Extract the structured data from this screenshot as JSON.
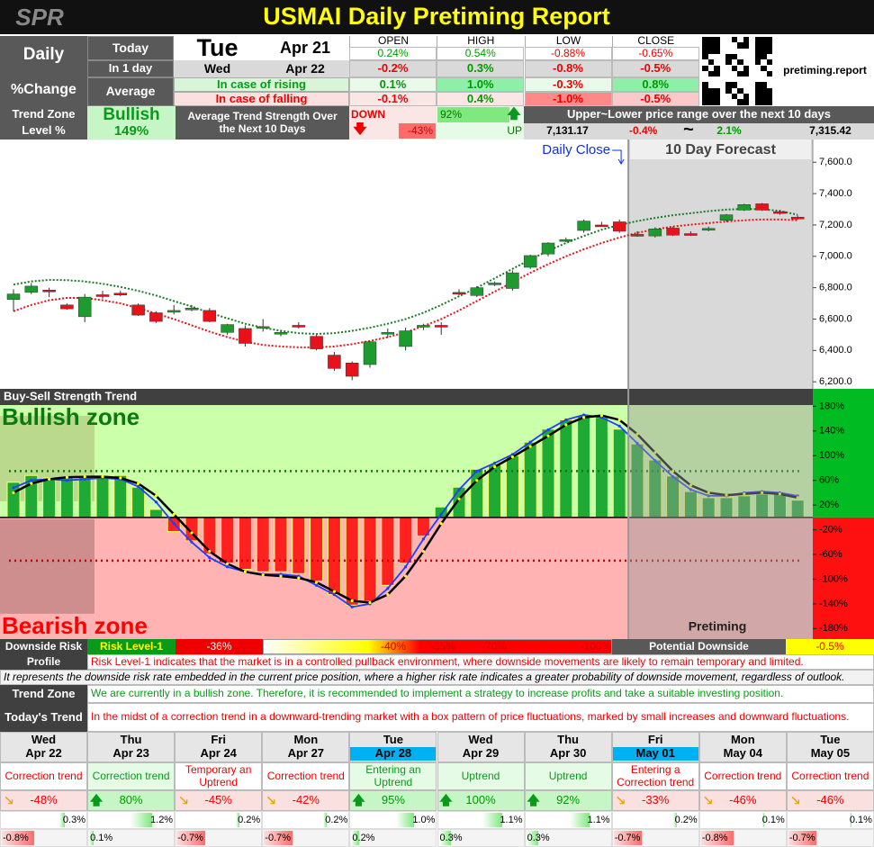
{
  "header": {
    "logo": "SPR",
    "title": "USMAI Daily Pretiming Report",
    "site": "pretiming.report"
  },
  "summary": {
    "label_daily": "Daily",
    "label_change": "%Change",
    "label_today": "Today",
    "label_in1day": "In 1 day",
    "label_average": "Average",
    "today_day": "Tue",
    "today_date": "Apr 21",
    "next_day": "Wed",
    "next_date": "Apr 22",
    "label_rising": "In case of rising",
    "label_falling": "In case of falling",
    "columns": [
      "OPEN",
      "HIGH",
      "LOW",
      "CLOSE"
    ],
    "rows": [
      [
        "0.24%",
        "0.54%",
        "-0.88%",
        "-0.65%"
      ],
      [
        "-0.2%",
        "0.3%",
        "-0.8%",
        "-0.5%"
      ],
      [
        "0.1%",
        "1.0%",
        "-0.3%",
        "0.8%"
      ],
      [
        "-0.1%",
        "0.4%",
        "-1.0%",
        "-0.5%"
      ]
    ]
  },
  "trend": {
    "label": "Trend Zone",
    "label2": "Level %",
    "zone": "Bullish",
    "level": "149%",
    "strength_label": "Average Trend Strength Over the Next 10 Days",
    "down_label": "DOWN",
    "down_value": "-43%",
    "up_value": "92%",
    "up_label": "UP",
    "range_label": "Upper~Lower price range over the next 10 days",
    "range_low": "7,131.17",
    "range_low_pct": "-0.4%",
    "range_sep": "~",
    "range_high_pct": "2.1%",
    "range_high": "7,315.42"
  },
  "chart_data": [
    {
      "type": "candlestick",
      "daily_close_label": "Daily Close",
      "forecast_label": "10 Day Forecast",
      "forecast_start": 35,
      "ylim": [
        6155,
        7745
      ],
      "yticks": [
        {
          "value": 6200,
          "label": "6,200.0"
        },
        {
          "value": 6400,
          "label": "6,400.0"
        },
        {
          "value": 6600,
          "label": "6,600.0"
        },
        {
          "value": 6800,
          "label": "6,800.0"
        },
        {
          "value": 7000,
          "label": "7,000.0"
        },
        {
          "value": 7200,
          "label": "7,200.0"
        },
        {
          "value": 7400,
          "label": "7,400.0"
        },
        {
          "value": 7600,
          "label": "7,600.0"
        }
      ],
      "up_color": "#1e9b2e",
      "down_color": "#e8121b",
      "ohlc": [
        [
          6725,
          6790,
          6650,
          6760
        ],
        [
          6770,
          6830,
          6760,
          6810
        ],
        [
          6785,
          6800,
          6740,
          6780
        ],
        [
          6690,
          6700,
          6660,
          6665
        ],
        [
          6615,
          6760,
          6580,
          6740
        ],
        [
          6755,
          6780,
          6730,
          6745
        ],
        [
          6765,
          6780,
          6745,
          6760
        ],
        [
          6690,
          6700,
          6620,
          6625
        ],
        [
          6640,
          6650,
          6575,
          6585
        ],
        [
          6650,
          6690,
          6630,
          6655
        ],
        [
          6665,
          6690,
          6650,
          6670
        ],
        [
          6655,
          6670,
          6580,
          6585
        ],
        [
          6515,
          6570,
          6500,
          6565
        ],
        [
          6540,
          6560,
          6425,
          6445
        ],
        [
          6548,
          6600,
          6520,
          6552
        ],
        [
          6510,
          6530,
          6490,
          6515
        ],
        [
          6560,
          6580,
          6540,
          6555
        ],
        [
          6490,
          6500,
          6400,
          6410
        ],
        [
          6370,
          6390,
          6270,
          6285
        ],
        [
          6320,
          6330,
          6210,
          6235
        ],
        [
          6310,
          6460,
          6290,
          6455
        ],
        [
          6505,
          6540,
          6480,
          6515
        ],
        [
          6425,
          6545,
          6400,
          6525
        ],
        [
          6550,
          6570,
          6530,
          6560
        ],
        [
          6560,
          6580,
          6500,
          6550
        ],
        [
          6770,
          6790,
          6750,
          6765
        ],
        [
          6750,
          6810,
          6740,
          6800
        ],
        [
          6820,
          6840,
          6810,
          6830
        ],
        [
          6795,
          6910,
          6780,
          6895
        ],
        [
          6930,
          7010,
          6920,
          7005
        ],
        [
          7015,
          7090,
          7000,
          7085
        ],
        [
          7100,
          7120,
          7090,
          7107
        ],
        [
          7165,
          7235,
          7150,
          7225
        ],
        [
          7200,
          7220,
          7190,
          7198
        ],
        [
          7220,
          7235,
          7150,
          7160
        ],
        [
          7140,
          7160,
          7125,
          7130
        ],
        [
          7130,
          7185,
          7120,
          7175
        ],
        [
          7180,
          7190,
          7130,
          7135
        ],
        [
          7145,
          7160,
          7130,
          7140
        ],
        [
          7170,
          7190,
          7160,
          7178
        ],
        [
          7230,
          7270,
          7220,
          7265
        ],
        [
          7295,
          7335,
          7290,
          7330
        ],
        [
          7335,
          7340,
          7290,
          7295
        ],
        [
          7285,
          7295,
          7265,
          7275
        ],
        [
          7250,
          7260,
          7235,
          7240
        ]
      ],
      "series": [
        {
          "color": "#1a7a2a",
          "values": [
            6820,
            6840,
            6850,
            6848,
            6840,
            6825,
            6805,
            6780,
            6750,
            6715,
            6680,
            6640,
            6605,
            6570,
            6545,
            6525,
            6510,
            6505,
            6510,
            6525,
            6545,
            6570,
            6600,
            6640,
            6690,
            6745,
            6800,
            6860,
            6920,
            6980,
            7035,
            7085,
            7130,
            7170,
            7200,
            7225,
            7245,
            7262,
            7275,
            7288,
            7298,
            7303,
            7300,
            7290,
            7265
          ]
        },
        {
          "color": "#e8121b",
          "values": [
            6650,
            6690,
            6720,
            6735,
            6735,
            6720,
            6700,
            6670,
            6635,
            6600,
            6560,
            6520,
            6485,
            6455,
            6435,
            6425,
            6420,
            6420,
            6425,
            6440,
            6460,
            6485,
            6515,
            6555,
            6600,
            6655,
            6715,
            6775,
            6835,
            6895,
            6950,
            7000,
            7045,
            7085,
            7120,
            7150,
            7172,
            7190,
            7202,
            7212,
            7222,
            7230,
            7235,
            7235,
            7230
          ]
        }
      ]
    },
    {
      "type": "bar",
      "title": "Buy-Sell Strength Trend",
      "bull_label": "Bullish zone",
      "bear_label": "Bearish zone",
      "brand": "Pretiming",
      "forecast_start": 35,
      "ylim": [
        -197,
        182
      ],
      "yticks": [
        {
          "value": 180,
          "label": "180%"
        },
        {
          "value": 140,
          "label": "140%"
        },
        {
          "value": 100,
          "label": "100%"
        },
        {
          "value": 60,
          "label": "60%"
        },
        {
          "value": 20,
          "label": "20%"
        },
        {
          "value": -20,
          "label": "-20%"
        },
        {
          "value": -60,
          "label": "-60%"
        },
        {
          "value": -100,
          "label": "-100%"
        },
        {
          "value": -140,
          "label": "-140%"
        },
        {
          "value": -180,
          "label": "-180%"
        }
      ],
      "upper_threshold": 75,
      "lower_threshold": -70,
      "up_color": "#1faa35",
      "down_color": "#ff2020",
      "values": [
        57,
        68,
        64,
        64,
        68,
        68,
        68,
        49,
        13,
        -23,
        -38,
        -59,
        -74,
        -84,
        -88,
        -88,
        -91,
        -103,
        -125,
        -142,
        -136,
        -110,
        -74,
        -30,
        17,
        49,
        78,
        86,
        100,
        122,
        143,
        158,
        165,
        162,
        143,
        119,
        93,
        67,
        42,
        32,
        32,
        35,
        38,
        38,
        28
      ],
      "series": [
        {
          "color": "#1f3fff",
          "values": [
            48,
            60,
            62,
            60,
            62,
            64,
            62,
            50,
            25,
            -10,
            -40,
            -65,
            -80,
            -88,
            -92,
            -92,
            -95,
            -110,
            -125,
            -145,
            -140,
            -115,
            -80,
            -35,
            5,
            45,
            75,
            88,
            102,
            122,
            142,
            158,
            166,
            162,
            148,
            120,
            92,
            66,
            45,
            35,
            35,
            40,
            42,
            40,
            35
          ]
        },
        {
          "color": "#000000",
          "values": [
            40,
            55,
            62,
            65,
            66,
            66,
            64,
            55,
            35,
            5,
            -25,
            -55,
            -75,
            -88,
            -93,
            -95,
            -98,
            -105,
            -120,
            -135,
            -138,
            -125,
            -95,
            -55,
            -10,
            30,
            60,
            82,
            98,
            115,
            132,
            150,
            162,
            165,
            158,
            135,
            105,
            75,
            52,
            40,
            36,
            38,
            40,
            38,
            32
          ]
        }
      ]
    }
  ],
  "risk": {
    "label": "Downside Risk",
    "label2": "Profile",
    "level": "Risk Level-1",
    "value": "-36%",
    "scale": [
      "-40%",
      "-55%",
      "-70%",
      "-100%"
    ],
    "potential_label": "Potential Downside",
    "potential": "-0.5%",
    "description": "Risk Level-1 indicates that the market is in a controlled pullback environment, where downside movements are likely to remain temporary and limited.",
    "note": "It represents the downside risk rate embedded in the current price position, where a higher risk rate indicates a greater probability of downside movement, regardless of outlook."
  },
  "zone": {
    "label": "Trend Zone",
    "text": "We are currently in a bullish zone. Therefore, it is recommended to implement a strategy to increase profits and take a suitable investing position."
  },
  "today_trend": {
    "label": "Today's Trend",
    "text": "In the midst of a correction trend in a downward-trending market with a box pattern of price fluctuations, marked by small increases and downward fluctuations."
  },
  "forecast": [
    {
      "day": "Wed",
      "date": "Apr 22",
      "trend": "Correction trend",
      "direction": "down",
      "strength": "-48%",
      "high": "0.3%",
      "low": "-0.8%"
    },
    {
      "day": "Thu",
      "date": "Apr 23",
      "trend": "Correction trend",
      "direction": "up",
      "strength": "80%",
      "high": "1.2%",
      "low": "0.1%"
    },
    {
      "day": "Fri",
      "date": "Apr 24",
      "trend": "Temporary an Uptrend",
      "direction": "down",
      "strength": "-45%",
      "high": "0.2%",
      "low": "-0.7%"
    },
    {
      "day": "Mon",
      "date": "Apr 27",
      "trend": "Correction trend",
      "direction": "down",
      "strength": "-42%",
      "high": "0.2%",
      "low": "-0.7%"
    },
    {
      "day": "Tue",
      "date": "Apr 28",
      "highlight": true,
      "trend": "Entering an Uptrend",
      "direction": "up",
      "strength": "95%",
      "high": "1.0%",
      "low": "0.2%"
    },
    {
      "day": "Wed",
      "date": "Apr 29",
      "trend": "Uptrend",
      "direction": "up",
      "strength": "100%",
      "high": "1.1%",
      "low": "0.3%"
    },
    {
      "day": "Thu",
      "date": "Apr 30",
      "trend": "Uptrend",
      "direction": "up",
      "strength": "92%",
      "high": "1.1%",
      "low": "0.3%"
    },
    {
      "day": "Fri",
      "date": "May 01",
      "highlight": true,
      "trend": "Entering a Correction trend",
      "direction": "down",
      "strength": "-33%",
      "high": "0.2%",
      "low": "-0.7%"
    },
    {
      "day": "Mon",
      "date": "May 04",
      "trend": "Correction trend",
      "direction": "down",
      "strength": "-46%",
      "high": "0.1%",
      "low": "-0.8%"
    },
    {
      "day": "Tue",
      "date": "May 05",
      "trend": "Correction trend",
      "direction": "down",
      "strength": "-46%",
      "high": "0.1%",
      "low": "-0.7%"
    }
  ]
}
